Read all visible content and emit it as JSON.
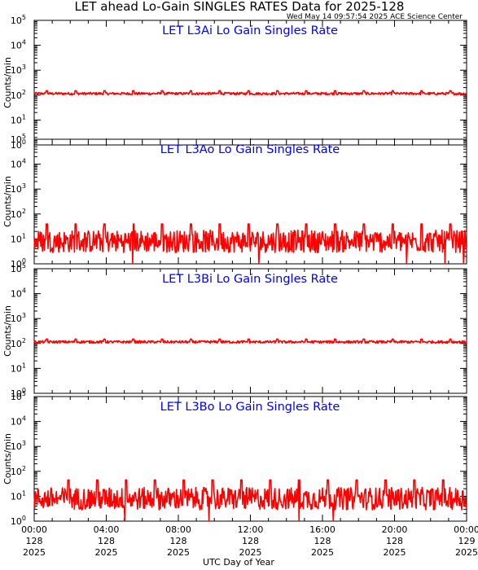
{
  "title": "LET ahead Lo-Gain SINGLES RATES Data for 2025-128",
  "timestamp": "Wed May 14 09:57:54 2025 ACE Science Center",
  "xlabel": "UTC Day of Year",
  "colors": {
    "series": "#ff0000",
    "panel_title": "#0000ff",
    "axes": "#000000"
  },
  "chart_data": {
    "type": "line",
    "x_ticks": [
      {
        "time": "00:00",
        "doy": "128",
        "year": "2025"
      },
      {
        "time": "04:00",
        "doy": "128",
        "year": "2025"
      },
      {
        "time": "08:00",
        "doy": "128",
        "year": "2025"
      },
      {
        "time": "12:00",
        "doy": "128",
        "year": "2025"
      },
      {
        "time": "16:00",
        "doy": "128",
        "year": "2025"
      },
      {
        "time": "20:00",
        "doy": "128",
        "year": "2025"
      },
      {
        "time": "00:00",
        "doy": "129",
        "year": "2025"
      }
    ],
    "xlim_hours": [
      0,
      24
    ],
    "y_scale": "log",
    "y_ticks": [
      {
        "base": "10",
        "exp": "0"
      },
      {
        "base": "10",
        "exp": "1"
      },
      {
        "base": "10",
        "exp": "2"
      },
      {
        "base": "10",
        "exp": "3"
      },
      {
        "base": "10",
        "exp": "4"
      },
      {
        "base": "10",
        "exp": "5"
      }
    ],
    "panels": [
      {
        "title": "LET L3Ai Lo Gain Singles Rate",
        "ylabel": "Counts/min",
        "ylim": [
          1,
          100000
        ],
        "baseline": 115,
        "noise": 0.05,
        "spike_peak": 150,
        "spike_every_hours": 1.6,
        "spike_start_hours": 0.7
      },
      {
        "title": "LET L3Ao Lo Gain Singles Rate",
        "ylabel": "Counts/min",
        "ylim": [
          1,
          100000
        ],
        "baseline": 8,
        "noise": 0.45,
        "spike_peak": 40,
        "spike_every_hours": 1.6,
        "spike_start_hours": 0.7
      },
      {
        "title": "LET L3Bi Lo Gain Singles Rate",
        "ylabel": "Counts/min",
        "ylim": [
          1,
          100000
        ],
        "baseline": 115,
        "noise": 0.05,
        "spike_peak": 150,
        "spike_every_hours": 1.6,
        "spike_start_hours": 0.7
      },
      {
        "title": "LET L3Bo Lo Gain Singles Rate",
        "ylabel": "Counts/min",
        "ylim": [
          1,
          100000
        ],
        "baseline": 8,
        "noise": 0.45,
        "spike_peak": 45,
        "spike_every_hours": 1.6,
        "spike_start_hours": 1.9
      }
    ]
  }
}
